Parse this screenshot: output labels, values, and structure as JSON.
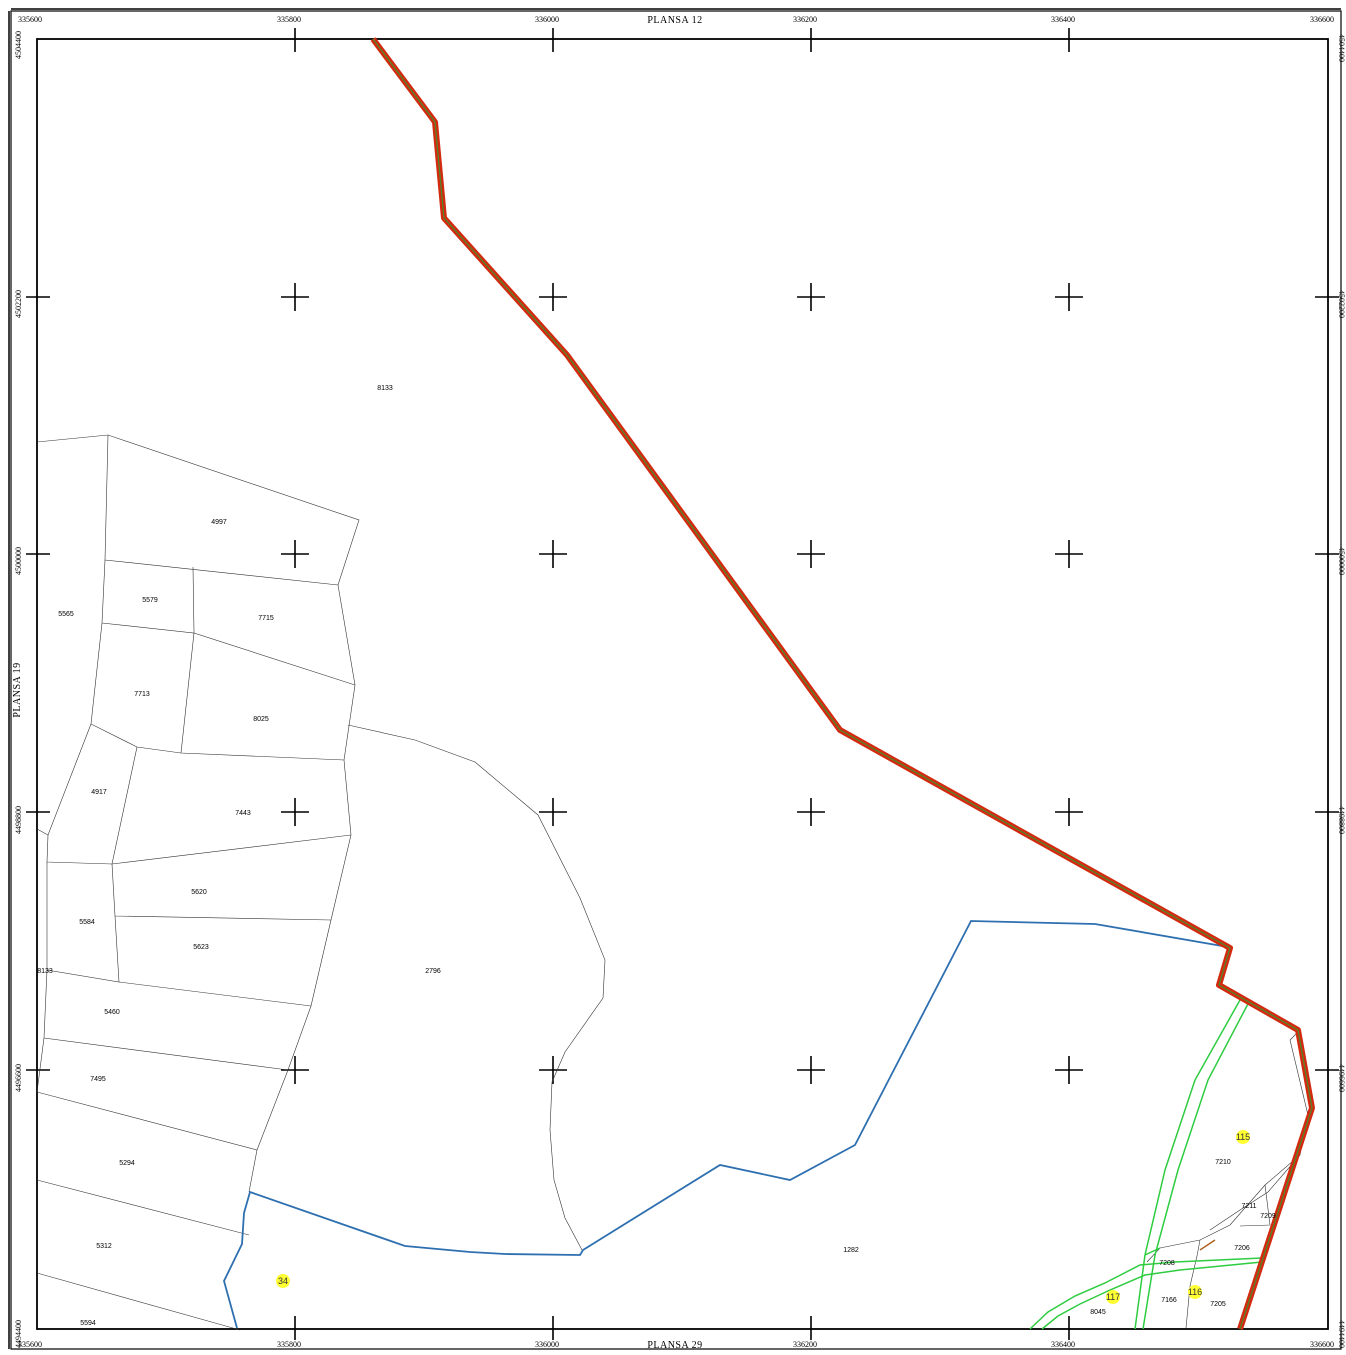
{
  "sheet_labels": {
    "top": "PLANSA  12",
    "bottom": "PLANSA  29",
    "left": "PLANSA  19"
  },
  "x_coords": [
    "335600",
    "335800",
    "336000",
    "336200",
    "336400",
    "336600"
  ],
  "y_coords": [
    "4504400",
    "4502200",
    "4500000",
    "4498800",
    "4496600",
    "4494400"
  ],
  "y_coords_right": [
    "4504400",
    "4502200",
    "4500000",
    "4498800",
    "4496600",
    "4494400"
  ],
  "parcels": [
    "8133",
    "4997",
    "5565",
    "5579",
    "7715",
    "7713",
    "8025",
    "4917",
    "7443",
    "5620",
    "5584",
    "5623",
    "8133",
    "2796",
    "5460",
    "7495",
    "5294",
    "5312",
    "5594",
    "1282",
    "7210",
    "7211",
    "7209",
    "7206",
    "7208",
    "8045",
    "7166",
    "7205"
  ],
  "markers": [
    "34",
    "115",
    "117",
    "116"
  ],
  "colors": {
    "boundary_outer": "#d32a10",
    "boundary_inner": "#4a8a2a",
    "blue_line": "#2e6fb0",
    "green_road": "#2ecc40",
    "marker": "#ffff33",
    "parcel_line": "#333333"
  }
}
